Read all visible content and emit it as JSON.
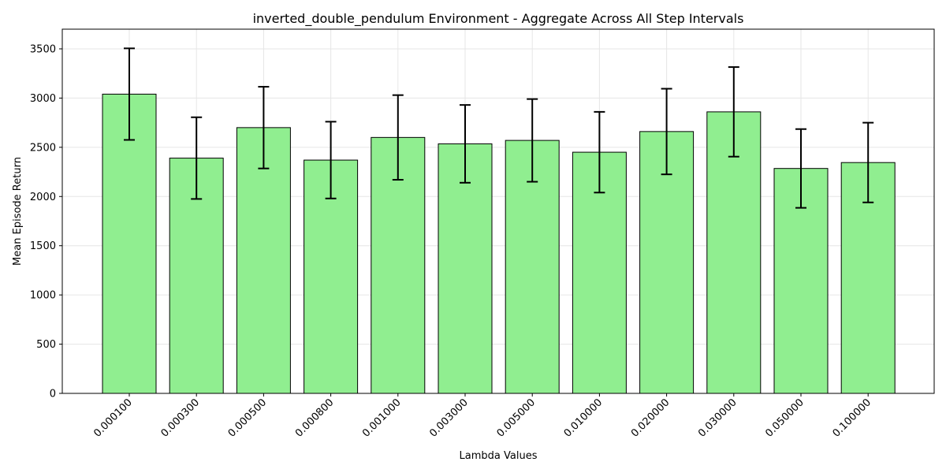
{
  "chart_data": {
    "type": "bar",
    "title": "inverted_double_pendulum Environment - Aggregate Across All Step Intervals",
    "xlabel": "Lambda Values",
    "ylabel": "Mean Episode Return",
    "categories": [
      "0.000100",
      "0.000300",
      "0.000500",
      "0.000800",
      "0.001000",
      "0.003000",
      "0.005000",
      "0.010000",
      "0.020000",
      "0.030000",
      "0.050000",
      "0.100000"
    ],
    "values": [
      3040,
      2390,
      2700,
      2370,
      2600,
      2535,
      2570,
      2450,
      2660,
      2860,
      2285,
      2345
    ],
    "errors": [
      465,
      415,
      415,
      390,
      430,
      395,
      420,
      410,
      435,
      455,
      400,
      405
    ],
    "ylim": [
      0,
      3700
    ],
    "yticks": [
      0,
      500,
      1000,
      1500,
      2000,
      2500,
      3000,
      3500
    ],
    "grid": true,
    "colors": {
      "bar_fill": "#90ee90",
      "bar_edge": "#000000",
      "error": "#000000",
      "grid": "#e6e6e6"
    }
  }
}
